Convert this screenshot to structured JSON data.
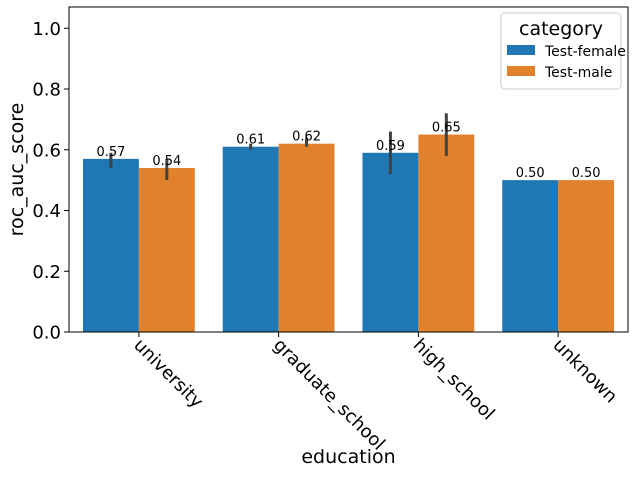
{
  "chart_data": {
    "type": "bar",
    "xlabel": "education",
    "ylabel": "roc_auc_score",
    "ylim": [
      0,
      1.07
    ],
    "yticks": [
      "0.0",
      "0.2",
      "0.4",
      "0.6",
      "0.8",
      "1.0"
    ],
    "categories": [
      "university",
      "graduate_school",
      "high_school",
      "unknown"
    ],
    "series": [
      {
        "name": "Test-female",
        "color": "#1f77b4",
        "values": [
          0.57,
          0.61,
          0.59,
          0.5
        ],
        "labels": [
          "0.57",
          "0.61",
          "0.59",
          "0.50"
        ],
        "ci": [
          [
            0.54,
            0.59
          ],
          [
            0.6,
            0.62
          ],
          [
            0.52,
            0.66
          ],
          [
            0.5,
            0.5
          ]
        ]
      },
      {
        "name": "Test-male",
        "color": "#e1812c",
        "values": [
          0.54,
          0.62,
          0.65,
          0.5
        ],
        "labels": [
          "0.54",
          "0.62",
          "0.65",
          "0.50"
        ],
        "ci": [
          [
            0.5,
            0.57
          ],
          [
            0.61,
            0.64
          ],
          [
            0.58,
            0.72
          ],
          [
            0.5,
            0.5
          ]
        ]
      }
    ],
    "legend": {
      "title": "category",
      "placement": "top-right"
    },
    "grid": false
  }
}
